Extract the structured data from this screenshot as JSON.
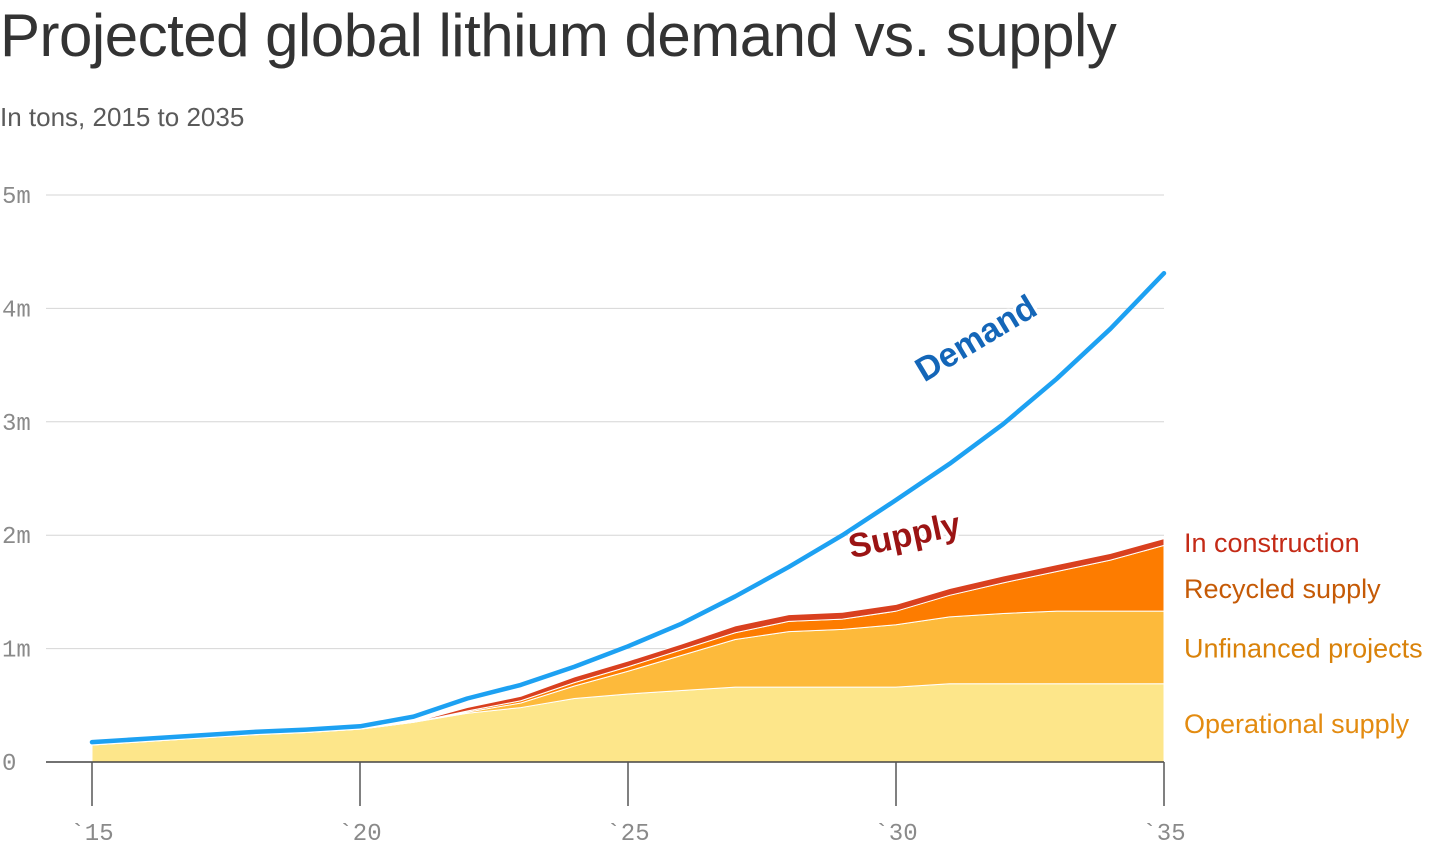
{
  "chart_data": {
    "type": "area",
    "title": "Projected global lithium demand vs. supply",
    "subtitle": "In tons, 2015 to 2035",
    "xlim": [
      2015,
      2035
    ],
    "ylim": [
      0,
      5000000
    ],
    "x": [
      2015,
      2016,
      2017,
      2018,
      2019,
      2020,
      2021,
      2022,
      2023,
      2024,
      2025,
      2026,
      2027,
      2028,
      2029,
      2030,
      2031,
      2032,
      2033,
      2034,
      2035
    ],
    "x_ticks": [
      {
        "value": 2015,
        "label": "`15"
      },
      {
        "value": 2020,
        "label": "`20"
      },
      {
        "value": 2025,
        "label": "`25"
      },
      {
        "value": 2030,
        "label": "`30"
      },
      {
        "value": 2035,
        "label": "`35"
      }
    ],
    "y_ticks": [
      {
        "value": 0,
        "label": "0"
      },
      {
        "value": 1000000,
        "label": "1m"
      },
      {
        "value": 2000000,
        "label": "2m"
      },
      {
        "value": 3000000,
        "label": "3m"
      },
      {
        "value": 4000000,
        "label": "4m"
      },
      {
        "value": 5000000,
        "label": "5m"
      }
    ],
    "grid": true,
    "stacked_series": [
      {
        "name": "Operational supply",
        "color": "#fde68a",
        "label_color": "#e38b10",
        "values": [
          150000,
          180000,
          210000,
          240000,
          260000,
          290000,
          350000,
          430000,
          480000,
          560000,
          600000,
          630000,
          660000,
          660000,
          660000,
          660000,
          690000,
          690000,
          690000,
          690000,
          690000
        ]
      },
      {
        "name": "Unfinanced projects",
        "color": "#fdba3b",
        "label_color": "#d9820a",
        "values": [
          0,
          0,
          0,
          0,
          0,
          0,
          0,
          10000,
          40000,
          110000,
          200000,
          310000,
          420000,
          490000,
          510000,
          550000,
          590000,
          620000,
          640000,
          640000,
          640000
        ]
      },
      {
        "name": "Recycled supply",
        "color": "#fd7c00",
        "label_color": "#c55a06",
        "values": [
          0,
          0,
          0,
          0,
          0,
          0,
          0,
          10000,
          20000,
          30000,
          40000,
          50000,
          60000,
          90000,
          90000,
          120000,
          190000,
          270000,
          350000,
          450000,
          580000
        ]
      },
      {
        "name": "In construction",
        "color": "#d9401f",
        "label_color": "#c42a16",
        "values": [
          0,
          0,
          0,
          0,
          0,
          0,
          0,
          30000,
          40000,
          50000,
          50000,
          50000,
          60000,
          60000,
          60000,
          60000,
          60000,
          60000,
          60000,
          60000,
          60000
        ]
      }
    ],
    "line_series": [
      {
        "name": "Demand",
        "color": "#1da1f2",
        "label_color": "#1466b8",
        "values": [
          175000,
          205000,
          235000,
          265000,
          285000,
          315000,
          400000,
          560000,
          680000,
          840000,
          1020000,
          1220000,
          1460000,
          1720000,
          2000000,
          2310000,
          2630000,
          2980000,
          3380000,
          3820000,
          4310000
        ]
      }
    ],
    "annotations": [
      {
        "text": "Demand",
        "color": "#1466b8"
      },
      {
        "text": "Supply",
        "color": "#9b1414"
      }
    ]
  }
}
